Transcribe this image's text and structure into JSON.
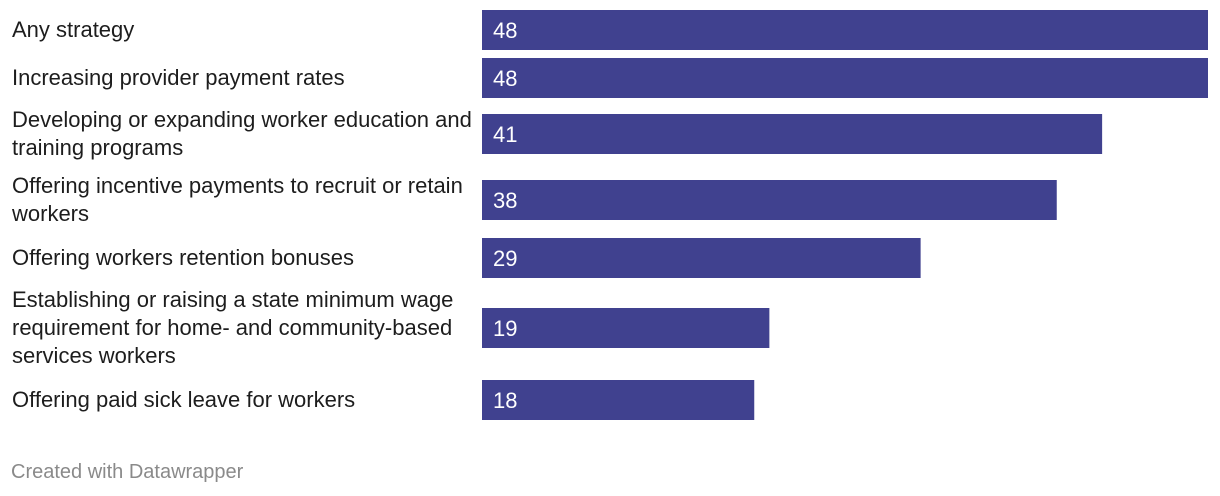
{
  "chart_data": {
    "type": "bar",
    "orientation": "horizontal",
    "categories": [
      "Any strategy",
      "Increasing provider payment rates",
      "Developing or expanding worker education and training programs",
      "Offering incentive payments to recruit or retain workers",
      "Offering workers retention bonuses",
      "Establishing or raising a state minimum wage requirement for home- and community-based services workers",
      "Offering paid sick leave for workers"
    ],
    "values": [
      48,
      48,
      41,
      38,
      29,
      19,
      18
    ],
    "value_labels": [
      "48",
      "48",
      "41",
      "38",
      "29",
      "19",
      "18"
    ],
    "bar_color": "#40418f",
    "value_label_color": "#ffffff",
    "xlim": [
      0,
      48
    ],
    "grid": false,
    "legend": "none"
  },
  "footer": {
    "credit": "Created with Datawrapper"
  }
}
